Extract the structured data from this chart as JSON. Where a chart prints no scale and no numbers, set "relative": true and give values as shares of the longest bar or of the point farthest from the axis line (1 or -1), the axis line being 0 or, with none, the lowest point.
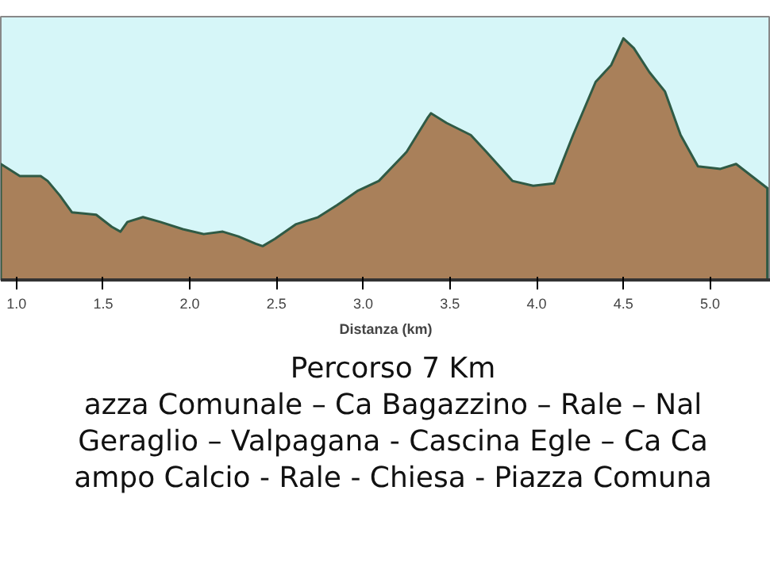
{
  "chart_data": {
    "type": "area",
    "relative": true,
    "xlabel": "Distanza (km)",
    "x": [
      0.91,
      1.02,
      1.14,
      1.18,
      1.25,
      1.32,
      1.46,
      1.55,
      1.6,
      1.64,
      1.73,
      1.83,
      1.96,
      2.08,
      2.19,
      2.28,
      2.38,
      2.42,
      2.49,
      2.61,
      2.74,
      2.85,
      2.97,
      3.09,
      3.25,
      3.37,
      3.39,
      3.48,
      3.62,
      3.71,
      3.86,
      3.98,
      4.1,
      4.21,
      4.34,
      4.43,
      4.5,
      4.56,
      4.65,
      4.74,
      4.83,
      4.93,
      5.06,
      5.15,
      5.24,
      5.33
    ],
    "values": [
      0.48,
      0.43,
      0.43,
      0.41,
      0.35,
      0.28,
      0.27,
      0.22,
      0.2,
      0.24,
      0.26,
      0.24,
      0.21,
      0.19,
      0.2,
      0.18,
      0.15,
      0.14,
      0.17,
      0.23,
      0.26,
      0.31,
      0.37,
      0.41,
      0.53,
      0.67,
      0.69,
      0.65,
      0.6,
      0.53,
      0.41,
      0.39,
      0.4,
      0.6,
      0.82,
      0.89,
      1.0,
      0.96,
      0.86,
      0.78,
      0.6,
      0.47,
      0.46,
      0.48,
      0.43,
      0.38
    ],
    "color": "#a9805a",
    "xlim": [
      0.91,
      5.35
    ],
    "xticks": [
      {
        "value": 1,
        "label": "1.0"
      },
      {
        "value": 1.5,
        "label": "1.5"
      },
      {
        "value": 2,
        "label": "2.0"
      },
      {
        "value": 2.5,
        "label": "2.5"
      },
      {
        "value": 3,
        "label": "3.0"
      },
      {
        "value": 3.5,
        "label": "3.5"
      },
      {
        "value": 4,
        "label": "4.0"
      },
      {
        "value": 4.5,
        "label": "4.5"
      },
      {
        "value": 5,
        "label": "5.0"
      }
    ],
    "grid": false,
    "annotations": [
      "Percorso 7 Km",
      "azza Comunale – Ca Bagazzino – Rale – Nal",
      "Geraglio – Valpagana - Cascina Egle – Ca Ca",
      "ampo Calcio - Rale - Chiesa - Piazza Comuna"
    ]
  }
}
